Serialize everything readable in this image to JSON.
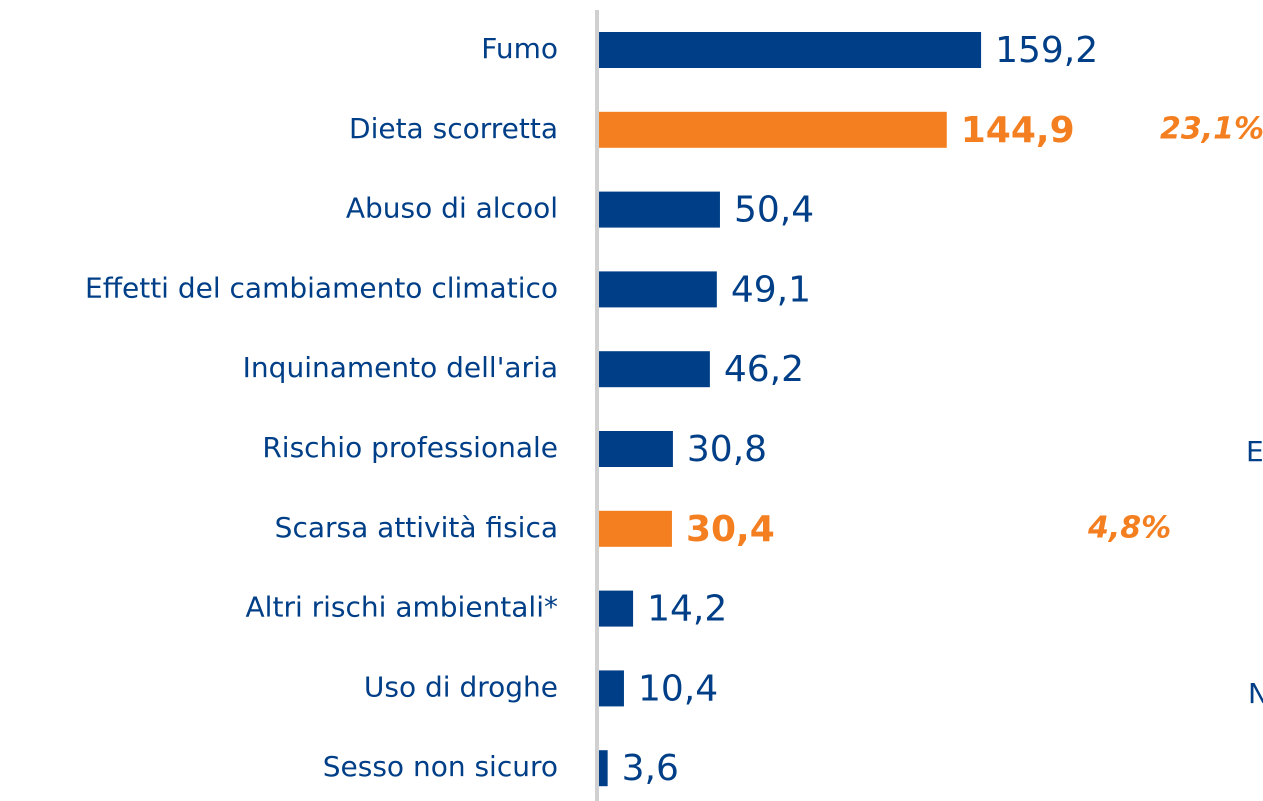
{
  "chart_data": {
    "type": "bar",
    "orientation": "horizontal",
    "categories": [
      "Fumo",
      "Dieta scorretta",
      "Abuso di alcool",
      "Effetti del cambiamento climatico",
      "Inquinamento dell'aria",
      "Rischio professionale",
      "Scarsa attività fisica",
      "Altri rischi ambientali*",
      "Uso di droghe",
      "Sesso non sicuro"
    ],
    "values": [
      159.2,
      144.9,
      50.4,
      49.1,
      46.2,
      30.8,
      30.4,
      14.2,
      10.4,
      3.6
    ],
    "value_labels": [
      "159,2",
      "144,9",
      "50,4",
      "49,1",
      "46,2",
      "30,8",
      "30,4",
      "14,2",
      "10,4",
      "3,6"
    ],
    "colors": [
      "#003f87",
      "#f47f20",
      "#003f87",
      "#003f87",
      "#003f87",
      "#003f87",
      "#f47f20",
      "#003f87",
      "#003f87",
      "#003f87"
    ],
    "highlighted": [
      false,
      true,
      false,
      false,
      false,
      false,
      true,
      false,
      false,
      false
    ],
    "annotations": [
      "23,1%",
      "4,8%",
      "E",
      "N"
    ]
  }
}
